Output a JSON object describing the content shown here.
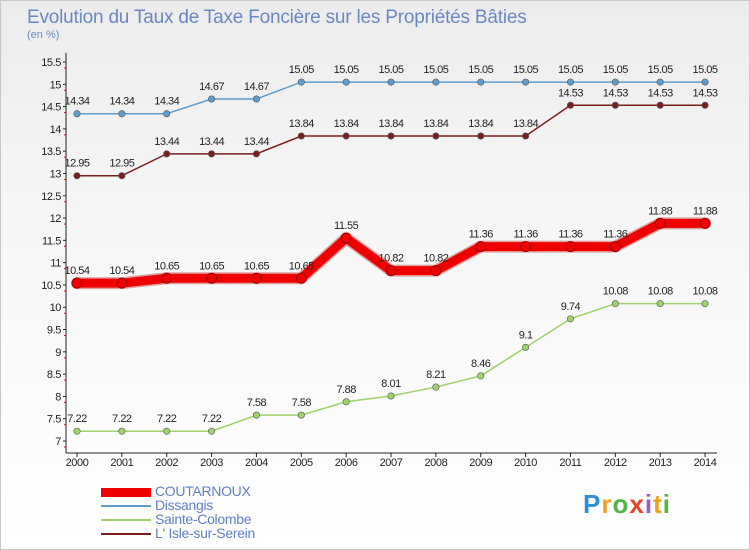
{
  "chart_data": {
    "type": "line",
    "title": "Evolution du Taux de Taxe Foncière sur les Propriétés Bâties",
    "unit_label": "(en %)",
    "xlabel": "",
    "ylabel": "(en %)",
    "ylim": [
      7,
      15.5
    ],
    "yticks": [
      "7",
      "7.5",
      "8",
      "8.5",
      "9",
      "9.5",
      "10",
      "10.5",
      "11",
      "11.5",
      "12",
      "12.5",
      "13",
      "13.5",
      "14",
      "14.5",
      "15",
      "15.5"
    ],
    "categories": [
      "2000",
      "2001",
      "2002",
      "2003",
      "2004",
      "2005",
      "2006",
      "2007",
      "2008",
      "2009",
      "2010",
      "2011",
      "2012",
      "2013",
      "2014"
    ],
    "series": [
      {
        "name": "COUTARNOUX",
        "color": "#ee0000",
        "values": [
          10.54,
          10.54,
          10.65,
          10.65,
          10.65,
          10.65,
          11.55,
          10.82,
          10.82,
          11.36,
          11.36,
          11.36,
          11.36,
          11.88,
          11.88
        ],
        "labels": [
          "10.54",
          "10.54",
          "10.65",
          "10.65",
          "10.65",
          "10.65",
          "11.55",
          "10.82",
          "10.82",
          "11.36",
          "11.36",
          "11.36",
          "11.36",
          "11.88",
          "11.88"
        ]
      },
      {
        "name": "Dissangis",
        "color": "#5e9dcd",
        "values": [
          14.34,
          14.34,
          14.34,
          14.67,
          14.67,
          15.05,
          15.05,
          15.05,
          15.05,
          15.05,
          15.05,
          15.05,
          15.05,
          15.05,
          15.05
        ],
        "labels": [
          "14.34",
          "14.34",
          "14.34",
          "14.67",
          "14.67",
          "15.05",
          "15.05",
          "15.05",
          "15.05",
          "15.05",
          "15.05",
          "15.05",
          "15.05",
          "15.05",
          "15.05"
        ]
      },
      {
        "name": "Sainte-Colombe",
        "color": "#9ed26a",
        "values": [
          7.22,
          7.22,
          7.22,
          7.22,
          7.58,
          7.58,
          7.88,
          8.01,
          8.21,
          8.46,
          9.1,
          9.74,
          10.08,
          10.08,
          10.08
        ],
        "labels": [
          "7.22",
          "7.22",
          "7.22",
          "7.22",
          "7.58",
          "7.58",
          "7.88",
          "8.01",
          "8.21",
          "8.46",
          "9.1",
          "9.74",
          "10.08",
          "10.08",
          "10.08"
        ]
      },
      {
        "name": "L' Isle-sur-Serein",
        "color": "#7a1f1f",
        "values": [
          12.95,
          12.95,
          13.44,
          13.44,
          13.44,
          13.84,
          13.84,
          13.84,
          13.84,
          13.84,
          13.84,
          14.53,
          14.53,
          14.53,
          14.53
        ],
        "labels": [
          "12.95",
          "12.95",
          "13.44",
          "13.44",
          "13.44",
          "13.84",
          "13.84",
          "13.84",
          "13.84",
          "13.84",
          "13.84",
          "14.53",
          "14.53",
          "14.53",
          "14.53"
        ]
      }
    ],
    "legend": [
      "COUTARNOUX",
      "Dissangis",
      "Sainte-Colombe",
      "L' Isle-sur-Serein"
    ],
    "legend_position": "bottom-left",
    "grid": false
  },
  "brand": {
    "letters": [
      "P",
      "r",
      "o",
      "x",
      "i",
      "t",
      "i"
    ]
  }
}
